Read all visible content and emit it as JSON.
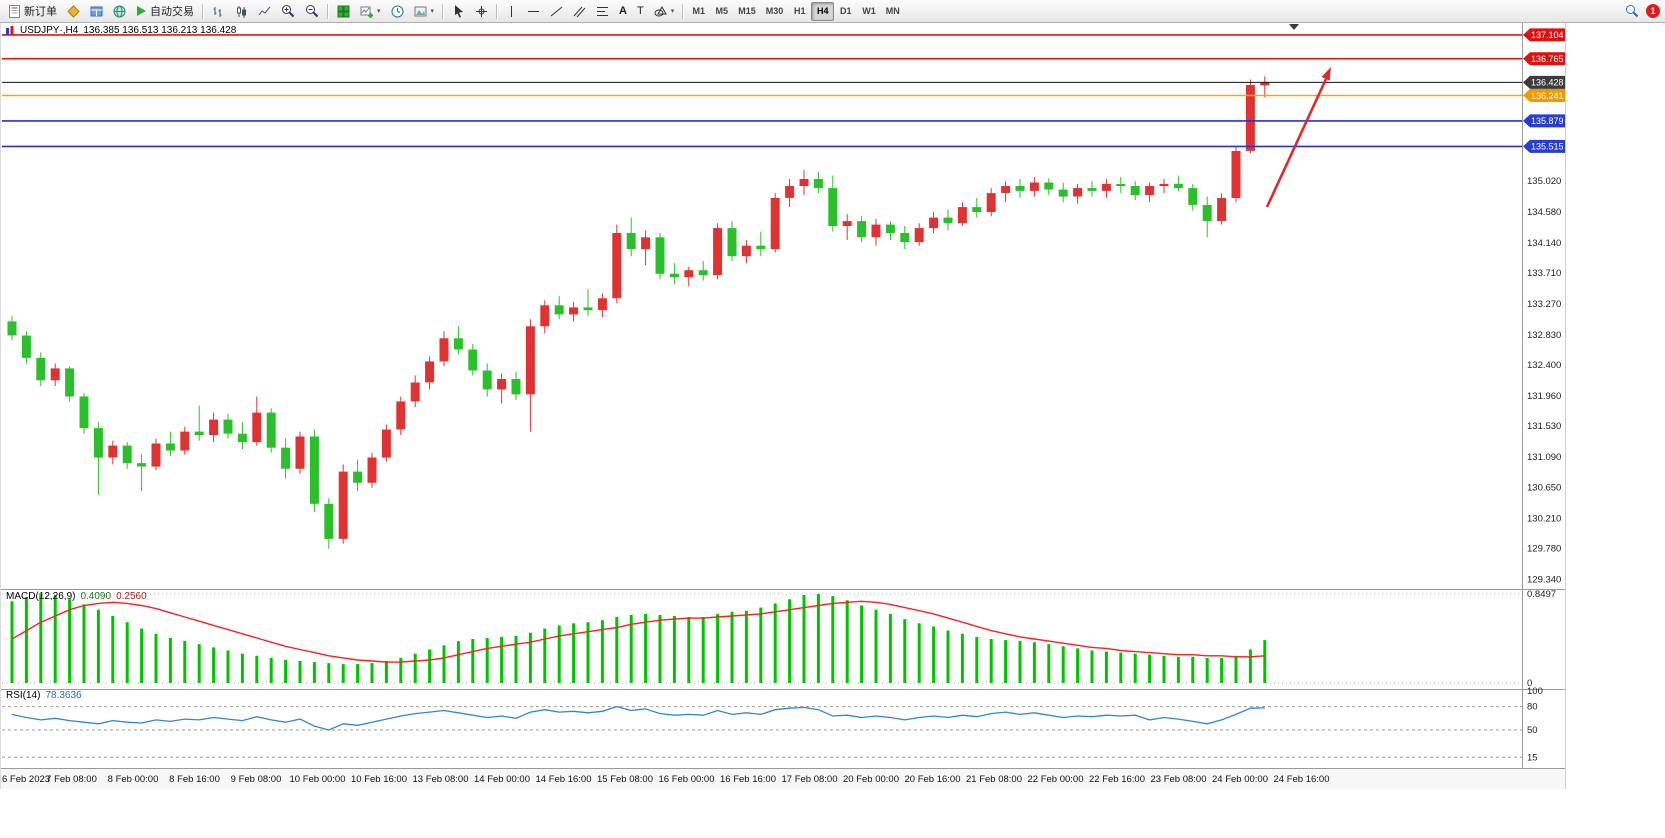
{
  "toolbar": {
    "new_order_label": "新订单",
    "auto_trading_label": "自动交易",
    "timeframes": [
      "M1",
      "M5",
      "M15",
      "M30",
      "H1",
      "H4",
      "D1",
      "W1",
      "MN"
    ],
    "active_timeframe": "H4",
    "notification_count": "1"
  },
  "chart": {
    "title": "USDJPY·,H4",
    "ohlc_text": "136.385 136.513 136.213 136.428",
    "price_axis_ticks": [
      "135.020",
      "134.580",
      "134.140",
      "133.710",
      "133.270",
      "132.830",
      "132.400",
      "131.960",
      "131.530",
      "131.090",
      "130.650",
      "130.210",
      "129.780",
      "129.340"
    ],
    "lines": [
      {
        "value": "137.104",
        "color": "#e01515",
        "width": 1.6,
        "badge": "#dd1111"
      },
      {
        "value": "136.765",
        "color": "#e01515",
        "width": 1.6,
        "badge": "#dd1111"
      },
      {
        "value": "136.428",
        "color": "#111111",
        "width": 1,
        "badge": "#3c3c3c"
      },
      {
        "value": "136.241",
        "color": "#f7a213",
        "width": 1.6,
        "badge": "#f09a00"
      },
      {
        "value": "135.879",
        "color": "#2430d8",
        "width": 1.6,
        "badge": "#2a3cd6"
      },
      {
        "value": "135.515",
        "color": "#2430d8",
        "width": 1.6,
        "badge": "#2a3cd6"
      }
    ],
    "time_axis": [
      "6 Feb 2023",
      "7 Feb 08:00",
      "8 Feb 00:00",
      "8 Feb 16:00",
      "9 Feb 08:00",
      "10 Feb 00:00",
      "10 Feb 16:00",
      "13 Feb 08:00",
      "14 Feb 00:00",
      "14 Feb 16:00",
      "15 Feb 08:00",
      "16 Feb 00:00",
      "16 Feb 16:00",
      "17 Feb 08:00",
      "20 Feb 00:00",
      "20 Feb 16:00",
      "21 Feb 08:00",
      "22 Feb 00:00",
      "22 Feb 16:00",
      "23 Feb 08:00",
      "24 Feb 00:00",
      "24 Feb 16:00"
    ]
  },
  "macd": {
    "name": "MACD(12,26,9)",
    "main_value": "0.4090",
    "signal_value": "0.2560",
    "max_label": "0.8497",
    "zero_label": "0"
  },
  "rsi": {
    "name": "RSI(14)",
    "value": "78.3636",
    "axis_labels": [
      "100",
      "80",
      "50",
      "15"
    ],
    "levels": [
      80,
      50,
      15
    ]
  },
  "chart_data": {
    "type": "candlestick",
    "symbol": "USDJPY",
    "timeframe": "H4",
    "up_color": "#df3333",
    "down_color": "#2bc02b",
    "candles": [
      [
        133.02,
        133.1,
        132.75,
        132.82
      ],
      [
        132.82,
        132.88,
        132.42,
        132.5
      ],
      [
        132.5,
        132.58,
        132.1,
        132.18
      ],
      [
        132.18,
        132.42,
        132.1,
        132.35
      ],
      [
        132.35,
        132.38,
        131.88,
        131.95
      ],
      [
        131.95,
        132.0,
        131.42,
        131.5
      ],
      [
        131.5,
        131.58,
        130.55,
        131.08
      ],
      [
        131.08,
        131.32,
        130.98,
        131.25
      ],
      [
        131.25,
        131.3,
        130.92,
        131.0
      ],
      [
        131.0,
        131.12,
        130.6,
        130.95
      ],
      [
        130.95,
        131.35,
        130.9,
        131.28
      ],
      [
        131.28,
        131.45,
        131.1,
        131.18
      ],
      [
        131.18,
        131.52,
        131.12,
        131.45
      ],
      [
        131.45,
        131.82,
        131.32,
        131.4
      ],
      [
        131.4,
        131.72,
        131.3,
        131.62
      ],
      [
        131.62,
        131.7,
        131.35,
        131.42
      ],
      [
        131.42,
        131.58,
        131.2,
        131.3
      ],
      [
        131.3,
        131.95,
        131.25,
        131.72
      ],
      [
        131.72,
        131.78,
        131.15,
        131.22
      ],
      [
        131.22,
        131.35,
        130.78,
        130.92
      ],
      [
        130.92,
        131.45,
        130.85,
        131.38
      ],
      [
        131.38,
        131.48,
        130.3,
        130.42
      ],
      [
        130.42,
        130.5,
        129.78,
        129.92
      ],
      [
        129.92,
        130.98,
        129.85,
        130.88
      ],
      [
        130.88,
        131.05,
        130.6,
        130.72
      ],
      [
        130.72,
        131.15,
        130.65,
        131.08
      ],
      [
        131.08,
        131.55,
        131.02,
        131.48
      ],
      [
        131.48,
        131.95,
        131.4,
        131.88
      ],
      [
        131.88,
        132.25,
        131.8,
        132.15
      ],
      [
        132.15,
        132.52,
        132.05,
        132.45
      ],
      [
        132.45,
        132.88,
        132.38,
        132.78
      ],
      [
        132.78,
        132.95,
        132.55,
        132.62
      ],
      [
        132.62,
        132.7,
        132.25,
        132.32
      ],
      [
        132.32,
        132.42,
        131.95,
        132.05
      ],
      [
        132.05,
        132.28,
        131.85,
        132.2
      ],
      [
        132.2,
        132.3,
        131.9,
        131.98
      ],
      [
        131.98,
        133.05,
        131.45,
        132.95
      ],
      [
        132.95,
        133.32,
        132.85,
        133.25
      ],
      [
        133.25,
        133.38,
        133.05,
        133.12
      ],
      [
        133.12,
        133.3,
        133.02,
        133.22
      ],
      [
        133.22,
        133.48,
        133.1,
        133.18
      ],
      [
        133.18,
        133.42,
        133.08,
        133.35
      ],
      [
        133.35,
        134.4,
        133.28,
        134.28
      ],
      [
        134.28,
        134.5,
        133.95,
        134.05
      ],
      [
        134.05,
        134.32,
        133.82,
        134.22
      ],
      [
        134.22,
        134.28,
        133.62,
        133.7
      ],
      [
        133.7,
        133.85,
        133.55,
        133.65
      ],
      [
        133.65,
        133.8,
        133.52,
        133.75
      ],
      [
        133.75,
        133.88,
        133.6,
        133.68
      ],
      [
        133.68,
        134.42,
        133.62,
        134.35
      ],
      [
        134.35,
        134.45,
        133.88,
        133.95
      ],
      [
        133.95,
        134.18,
        133.85,
        134.1
      ],
      [
        134.1,
        134.3,
        133.95,
        134.05
      ],
      [
        134.05,
        134.85,
        134.0,
        134.78
      ],
      [
        134.78,
        135.05,
        134.65,
        134.95
      ],
      [
        134.95,
        135.18,
        134.82,
        135.05
      ],
      [
        135.05,
        135.15,
        134.85,
        134.92
      ],
      [
        134.92,
        135.1,
        134.3,
        134.38
      ],
      [
        134.38,
        134.55,
        134.18,
        134.45
      ],
      [
        134.45,
        134.52,
        134.15,
        134.22
      ],
      [
        134.22,
        134.48,
        134.1,
        134.4
      ],
      [
        134.4,
        134.45,
        134.18,
        134.28
      ],
      [
        134.28,
        134.38,
        134.05,
        134.15
      ],
      [
        134.15,
        134.42,
        134.1,
        134.35
      ],
      [
        134.35,
        134.58,
        134.28,
        134.5
      ],
      [
        134.5,
        134.62,
        134.32,
        134.42
      ],
      [
        134.42,
        134.72,
        134.38,
        134.65
      ],
      [
        134.65,
        134.78,
        134.5,
        134.58
      ],
      [
        134.58,
        134.92,
        134.52,
        134.85
      ],
      [
        134.85,
        135.02,
        134.72,
        134.95
      ],
      [
        134.95,
        135.05,
        134.78,
        134.88
      ],
      [
        134.88,
        135.08,
        134.8,
        135.0
      ],
      [
        135.0,
        135.06,
        134.82,
        134.9
      ],
      [
        134.9,
        135.0,
        134.72,
        134.8
      ],
      [
        134.8,
        134.98,
        134.7,
        134.92
      ],
      [
        134.92,
        135.02,
        134.8,
        134.88
      ],
      [
        134.88,
        135.05,
        134.78,
        134.98
      ],
      [
        134.98,
        135.08,
        134.85,
        134.95
      ],
      [
        134.95,
        135.02,
        134.75,
        134.82
      ],
      [
        134.82,
        135.0,
        134.72,
        134.95
      ],
      [
        134.95,
        135.05,
        134.85,
        134.98
      ],
      [
        134.98,
        135.1,
        134.88,
        134.92
      ],
      [
        134.92,
        134.98,
        134.6,
        134.68
      ],
      [
        134.68,
        134.8,
        134.22,
        134.45
      ],
      [
        134.45,
        134.85,
        134.4,
        134.78
      ],
      [
        134.78,
        135.52,
        134.72,
        135.45
      ],
      [
        135.45,
        136.47,
        135.42,
        136.39
      ],
      [
        136.385,
        136.513,
        136.213,
        136.428
      ]
    ],
    "macd_histogram": [
      0.78,
      0.82,
      0.85,
      0.84,
      0.8,
      0.75,
      0.7,
      0.64,
      0.58,
      0.52,
      0.47,
      0.43,
      0.4,
      0.37,
      0.34,
      0.31,
      0.28,
      0.26,
      0.24,
      0.22,
      0.21,
      0.2,
      0.19,
      0.18,
      0.18,
      0.19,
      0.21,
      0.24,
      0.28,
      0.32,
      0.36,
      0.4,
      0.42,
      0.43,
      0.44,
      0.45,
      0.48,
      0.52,
      0.55,
      0.57,
      0.58,
      0.6,
      0.63,
      0.65,
      0.66,
      0.65,
      0.64,
      0.63,
      0.63,
      0.66,
      0.68,
      0.69,
      0.72,
      0.76,
      0.8,
      0.84,
      0.85,
      0.83,
      0.79,
      0.74,
      0.7,
      0.66,
      0.61,
      0.57,
      0.54,
      0.5,
      0.47,
      0.44,
      0.42,
      0.41,
      0.4,
      0.39,
      0.37,
      0.35,
      0.33,
      0.31,
      0.3,
      0.29,
      0.28,
      0.27,
      0.26,
      0.25,
      0.25,
      0.24,
      0.24,
      0.26,
      0.32,
      0.41
    ],
    "macd_signal": [
      0.42,
      0.5,
      0.58,
      0.64,
      0.7,
      0.74,
      0.76,
      0.77,
      0.76,
      0.74,
      0.71,
      0.67,
      0.63,
      0.59,
      0.55,
      0.51,
      0.47,
      0.43,
      0.39,
      0.35,
      0.32,
      0.29,
      0.26,
      0.24,
      0.22,
      0.21,
      0.2,
      0.2,
      0.21,
      0.22,
      0.24,
      0.27,
      0.3,
      0.33,
      0.35,
      0.37,
      0.39,
      0.42,
      0.45,
      0.47,
      0.49,
      0.51,
      0.53,
      0.56,
      0.58,
      0.6,
      0.61,
      0.62,
      0.62,
      0.63,
      0.64,
      0.65,
      0.66,
      0.68,
      0.7,
      0.72,
      0.74,
      0.76,
      0.77,
      0.78,
      0.77,
      0.75,
      0.72,
      0.69,
      0.66,
      0.62,
      0.58,
      0.54,
      0.5,
      0.47,
      0.44,
      0.42,
      0.4,
      0.38,
      0.36,
      0.34,
      0.33,
      0.31,
      0.3,
      0.29,
      0.28,
      0.27,
      0.27,
      0.26,
      0.26,
      0.25,
      0.25,
      0.26
    ],
    "rsi": [
      70,
      66,
      63,
      65,
      62,
      60,
      58,
      62,
      60,
      59,
      63,
      61,
      64,
      63,
      66,
      64,
      62,
      67,
      63,
      60,
      64,
      55,
      50,
      58,
      56,
      60,
      64,
      68,
      71,
      73,
      75,
      72,
      69,
      66,
      68,
      65,
      73,
      76,
      73,
      74,
      72,
      74,
      80,
      75,
      77,
      71,
      69,
      70,
      69,
      75,
      70,
      72,
      70,
      76,
      78,
      79,
      76,
      68,
      69,
      66,
      68,
      66,
      63,
      66,
      68,
      66,
      69,
      67,
      71,
      73,
      70,
      72,
      69,
      66,
      68,
      67,
      69,
      68,
      69,
      63,
      66,
      64,
      61,
      58,
      63,
      70,
      78,
      78.36
    ]
  }
}
